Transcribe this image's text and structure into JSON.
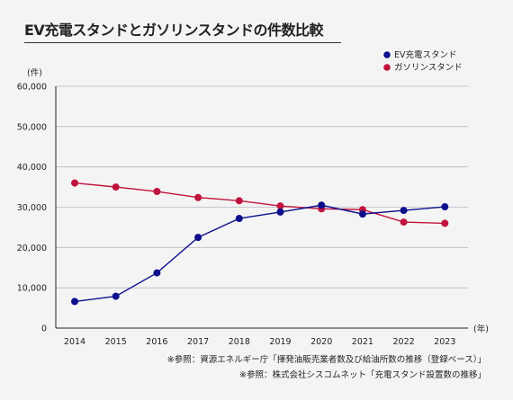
{
  "chart_data": {
    "type": "line",
    "title": "EV充電スタンドとガソリンスタンドの件数比較",
    "ylabel": "(件)",
    "xlabel": "(年)",
    "ylim": [
      0,
      60000
    ],
    "y_ticks": [
      "0",
      "10,000",
      "20,000",
      "30,000",
      "40,000",
      "50,000",
      "60,000"
    ],
    "y_tick_values": [
      0,
      10000,
      20000,
      30000,
      40000,
      50000,
      60000
    ],
    "categories": [
      "2014",
      "2015",
      "2016",
      "2017",
      "2018",
      "2019",
      "2020",
      "2021",
      "2022",
      "2023"
    ],
    "grid": true,
    "legend": "top-right",
    "series": [
      {
        "name": "EV充電スタンド",
        "color": "#0d0f8c",
        "values": [
          6600,
          7900,
          13700,
          22500,
          27200,
          28800,
          30500,
          28300,
          29200,
          30100
        ]
      },
      {
        "name": "ガソリンスタンド",
        "color": "#c0123c",
        "values": [
          36000,
          35000,
          33900,
          32400,
          31600,
          30300,
          29600,
          29400,
          26300,
          26000
        ]
      }
    ]
  },
  "notes": [
    "※参照：資源エネルギー庁「揮発油販売業者数及び給油所数の推移（登録ベース）」",
    "※参照：株式会社シスコムネット「充電スタンド設置数の推移」"
  ]
}
